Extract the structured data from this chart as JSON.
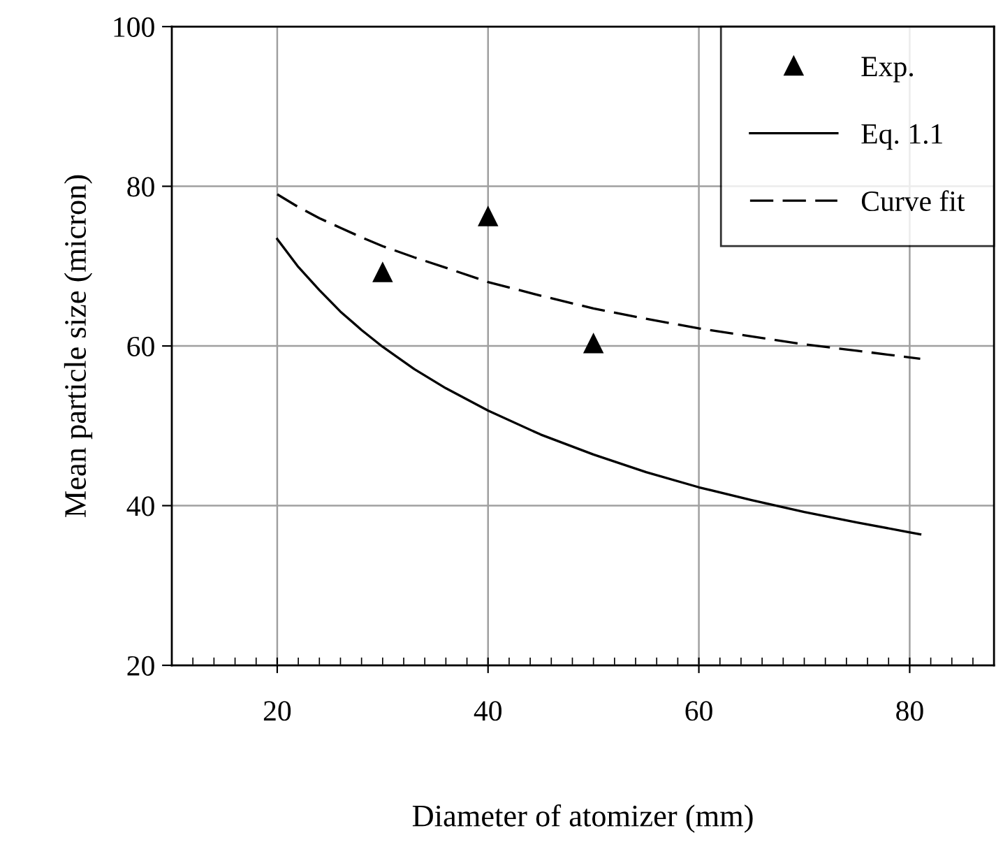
{
  "chart_data": {
    "type": "line",
    "xlabel": "Diameter of atomizer (mm)",
    "ylabel": "Mean particle size (micron)",
    "xlim": [
      10,
      88
    ],
    "ylim": [
      20,
      100
    ],
    "xticks": [
      {
        "value": 12,
        "label": null
      },
      {
        "value": 14,
        "label": null
      },
      {
        "value": 16,
        "label": null
      },
      {
        "value": 18,
        "label": null
      },
      20,
      {
        "value": 22,
        "label": null
      },
      {
        "value": 24,
        "label": null
      },
      {
        "value": 26,
        "label": null
      },
      {
        "value": 28,
        "label": null
      },
      {
        "value": 30,
        "label": null
      },
      {
        "value": 32,
        "label": null
      },
      {
        "value": 34,
        "label": null
      },
      {
        "value": 36,
        "label": null
      },
      {
        "value": 38,
        "label": null
      },
      40,
      {
        "value": 42,
        "label": null
      },
      {
        "value": 44,
        "label": null
      },
      {
        "value": 46,
        "label": null
      },
      {
        "value": 48,
        "label": null
      },
      {
        "value": 50,
        "label": null
      },
      {
        "value": 52,
        "label": null
      },
      {
        "value": 54,
        "label": null
      },
      {
        "value": 56,
        "label": null
      },
      {
        "value": 58,
        "label": null
      },
      60,
      {
        "value": 62,
        "label": null
      },
      {
        "value": 64,
        "label": null
      },
      {
        "value": 66,
        "label": null
      },
      {
        "value": 68,
        "label": null
      },
      {
        "value": 70,
        "label": null
      },
      {
        "value": 72,
        "label": null
      },
      {
        "value": 74,
        "label": null
      },
      {
        "value": 76,
        "label": null
      },
      {
        "value": 78,
        "label": null
      },
      80,
      {
        "value": 82,
        "label": null
      },
      {
        "value": 84,
        "label": null
      },
      {
        "value": 86,
        "label": null
      }
    ],
    "yticks": [
      20,
      40,
      60,
      80,
      100
    ],
    "grid": true,
    "legend": "top right",
    "series": [
      {
        "name": "Exp.",
        "type": "scatter",
        "marker": "triangle",
        "color": "#000000",
        "x": [
          30,
          40,
          50
        ],
        "values": [
          69.2,
          76.2,
          60.3
        ]
      },
      {
        "name": "Eq. 1.1",
        "line_style": "solid",
        "color": "#000000",
        "x": [
          20,
          22,
          24,
          26,
          28,
          30,
          33,
          36,
          40,
          45,
          50,
          55,
          60,
          65,
          70,
          75,
          81
        ],
        "values": [
          73.4,
          69.9,
          67.0,
          64.3,
          62.0,
          59.9,
          57.1,
          54.7,
          51.9,
          48.9,
          46.4,
          44.2,
          42.3,
          40.7,
          39.2,
          37.9,
          36.4
        ]
      },
      {
        "name": "Curve fit",
        "line_style": "dashed",
        "color": "#000000",
        "x": [
          20,
          22,
          24,
          26,
          28,
          30,
          33,
          36,
          40,
          45,
          50,
          55,
          60,
          65,
          70,
          75,
          81
        ],
        "values": [
          79.0,
          77.4,
          76.0,
          74.8,
          73.6,
          72.5,
          71.1,
          69.8,
          68.0,
          66.3,
          64.7,
          63.4,
          62.2,
          61.2,
          60.2,
          59.4,
          58.4
        ]
      }
    ]
  }
}
